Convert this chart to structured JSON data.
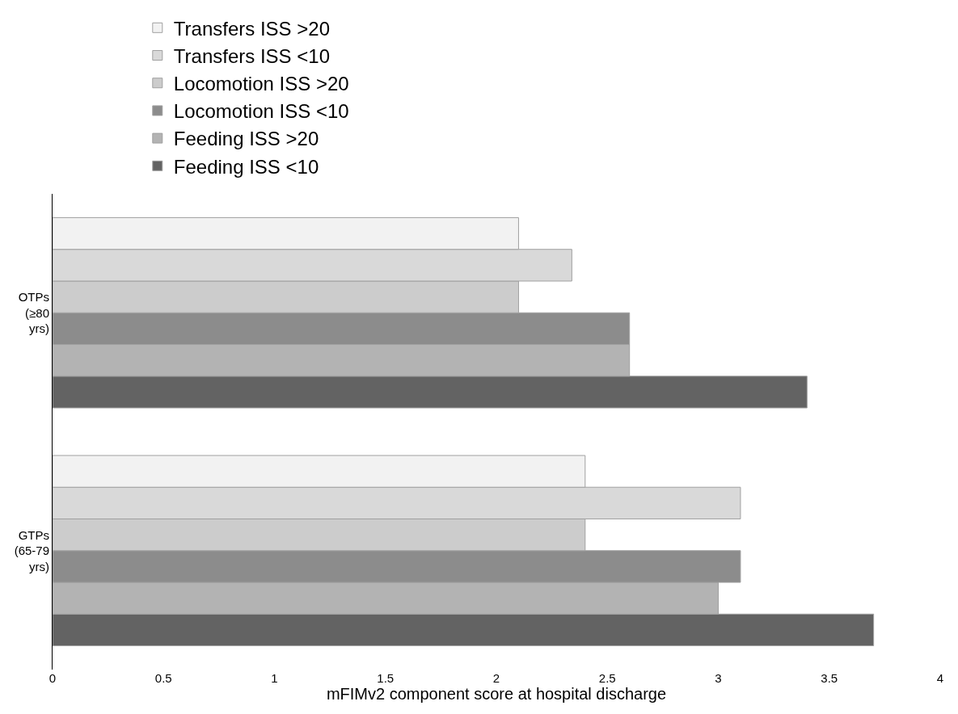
{
  "chart_data": {
    "type": "bar",
    "orientation": "horizontal",
    "xlabel": "mFIMv2 component score at hospital discharge",
    "categories": [
      "OTPs (≥80 yrs)",
      "GTPs (65-79 yrs)"
    ],
    "series": [
      {
        "name": "Feeding ISS <10",
        "color": "#636363",
        "values": [
          3.4,
          3.7
        ]
      },
      {
        "name": "Feeding ISS >20",
        "color": "#b3b3b3",
        "values": [
          2.6,
          3.0
        ]
      },
      {
        "name": "Locomotion ISS <10",
        "color": "#8c8c8c",
        "values": [
          2.6,
          3.1
        ]
      },
      {
        "name": "Locomotion ISS >20",
        "color": "#cccccc",
        "values": [
          2.1,
          2.4
        ]
      },
      {
        "name": "Transfers ISS <10",
        "color": "#d9d9d9",
        "values": [
          2.34,
          3.1
        ]
      },
      {
        "name": "Transfers ISS >20",
        "color": "#f2f2f2",
        "values": [
          2.1,
          2.4
        ]
      }
    ],
    "xlim": [
      0,
      4
    ],
    "xticks": [
      0,
      0.5,
      1,
      1.5,
      2,
      2.5,
      3,
      3.5,
      4
    ],
    "grid": false,
    "legend": "top left"
  }
}
